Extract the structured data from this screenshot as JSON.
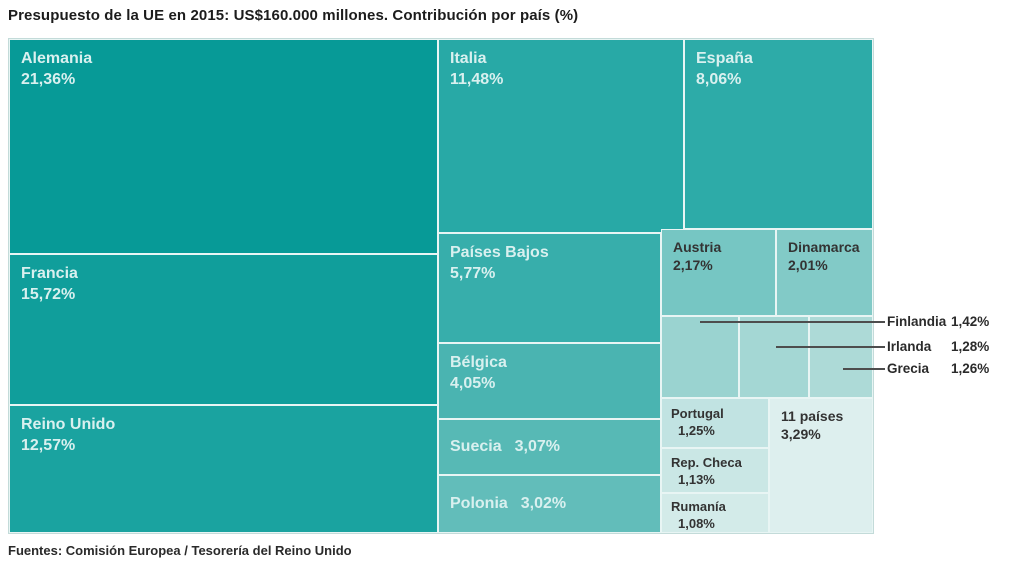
{
  "chart_data": {
    "type": "treemap",
    "title": "Presupuesto de la UE en 2015: US$160.000 millones. Contribución por país (%)",
    "source": "Fuentes: Comisión Europea / Tesorería del Reino Unido",
    "unit": "%",
    "budget_total": "US$160.000 millones",
    "year": "2015",
    "legend_position": "none",
    "items": [
      {
        "name": "Alemania",
        "value": 21.36,
        "value_label": "21,36%",
        "color": "#079a97"
      },
      {
        "name": "Francia",
        "value": 15.72,
        "value_label": "15,72%",
        "color": "#109e9b"
      },
      {
        "name": "Reino Unido",
        "value": 12.57,
        "value_label": "12,57%",
        "color": "#1aa3a0"
      },
      {
        "name": "Italia",
        "value": 11.48,
        "value_label": "11,48%",
        "color": "#28a9a6"
      },
      {
        "name": "España",
        "value": 8.06,
        "value_label": "8,06%",
        "color": "#2daba8"
      },
      {
        "name": "Países Bajos",
        "value": 5.77,
        "value_label": "5,77%",
        "color": "#37aeab"
      },
      {
        "name": "Bélgica",
        "value": 4.05,
        "value_label": "4,05%",
        "color": "#4ab4b1"
      },
      {
        "name": "Suecia",
        "value": 3.07,
        "value_label": "3,07%",
        "color": "#57b9b5"
      },
      {
        "name": "Polonia",
        "value": 3.02,
        "value_label": "3,02%",
        "color": "#62bdba"
      },
      {
        "name": "Austria",
        "value": 2.17,
        "value_label": "2,17%",
        "color": "#76c6c3"
      },
      {
        "name": "Dinamarca",
        "value": 2.01,
        "value_label": "2,01%",
        "color": "#82cac7"
      },
      {
        "name": "Finlandia",
        "value": 1.42,
        "value_label": "1,42%",
        "color": "#9ad3d0"
      },
      {
        "name": "Irlanda",
        "value": 1.28,
        "value_label": "1,28%",
        "color": "#a4d7d4"
      },
      {
        "name": "Grecia",
        "value": 1.26,
        "value_label": "1,26%",
        "color": "#addad7"
      },
      {
        "name": "Portugal",
        "value": 1.25,
        "value_label": "1,25%",
        "color": "#c1e3e2"
      },
      {
        "name": "Rep. Checa",
        "value": 1.13,
        "value_label": "1,13%",
        "color": "#cae7e5"
      },
      {
        "name": "Rumanía",
        "value": 1.08,
        "value_label": "1,08%",
        "color": "#d3ebe9"
      },
      {
        "name": "11 países",
        "value": 3.29,
        "value_label": "3,29%",
        "color": "#ddefee"
      }
    ]
  }
}
